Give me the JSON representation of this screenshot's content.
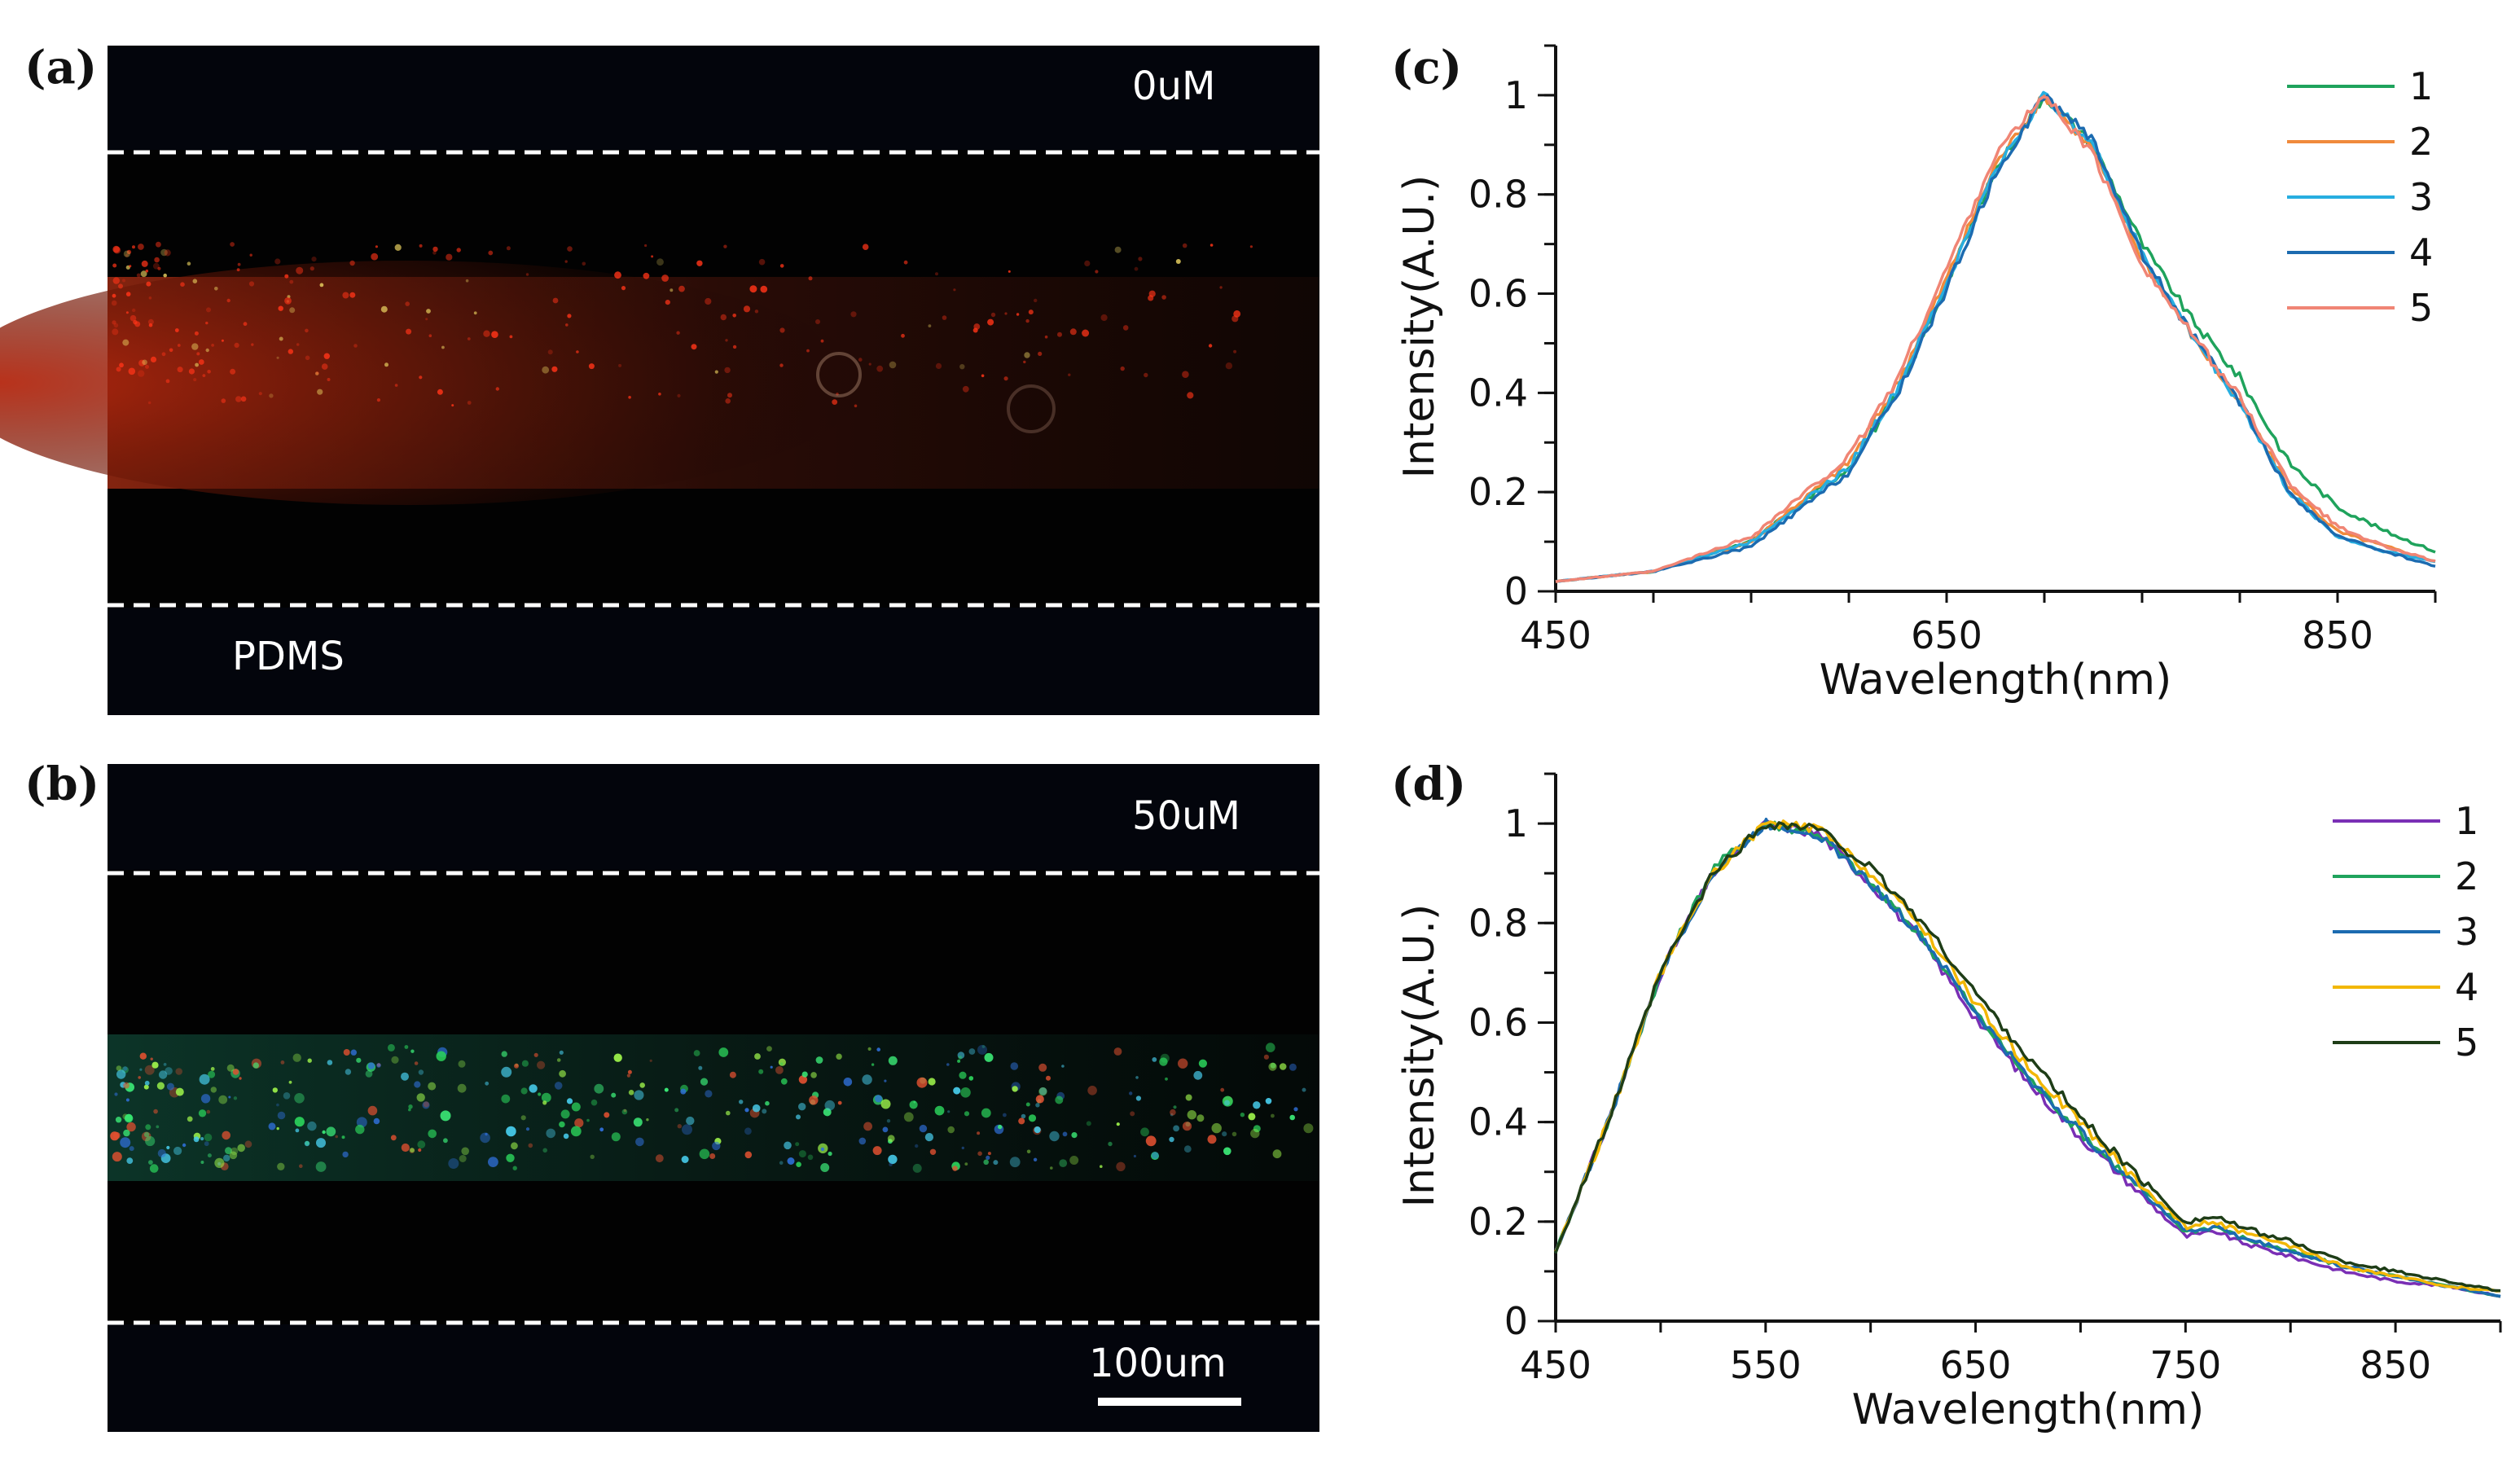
{
  "figure": {
    "panels": {
      "a": {
        "label": "(a)",
        "concentration": "0uM",
        "material": "PDMS"
      },
      "b": {
        "label": "(b)",
        "concentration": "50uM",
        "scale_bar": "100um"
      },
      "c": {
        "label": "(c)"
      },
      "d": {
        "label": "(d)"
      }
    }
  },
  "chart_data": [
    {
      "panel": "c",
      "type": "line",
      "title": "",
      "xlabel": "Wavelength(nm)",
      "ylabel": "Intensity(A.U.)",
      "xlim": [
        450,
        900
      ],
      "ylim": [
        0,
        1.1
      ],
      "xticks": [
        450,
        650,
        850
      ],
      "xtick_labels": [
        "450",
        "650",
        "850"
      ],
      "yticks": [
        0,
        0.2,
        0.4,
        0.6,
        0.8,
        1
      ],
      "ytick_labels": [
        "0",
        "0.2",
        "0.4",
        "0.6",
        "0.8",
        "1"
      ],
      "legend_position": "top-right",
      "x": [
        450,
        500,
        550,
        600,
        625,
        650,
        675,
        700,
        725,
        750,
        775,
        800,
        825,
        850,
        875,
        900
      ],
      "series": [
        {
          "name": "1",
          "color": "#1fa35c",
          "values": [
            0.02,
            0.04,
            0.1,
            0.25,
            0.4,
            0.62,
            0.85,
            1.0,
            0.9,
            0.7,
            0.55,
            0.43,
            0.26,
            0.17,
            0.12,
            0.08
          ]
        },
        {
          "name": "2",
          "color": "#f08a3c",
          "values": [
            0.02,
            0.04,
            0.1,
            0.26,
            0.42,
            0.63,
            0.86,
            1.0,
            0.89,
            0.67,
            0.52,
            0.38,
            0.21,
            0.12,
            0.09,
            0.06
          ]
        },
        {
          "name": "3",
          "color": "#27aee0",
          "values": [
            0.02,
            0.04,
            0.1,
            0.25,
            0.41,
            0.62,
            0.85,
            1.0,
            0.9,
            0.68,
            0.52,
            0.38,
            0.2,
            0.11,
            0.08,
            0.06
          ]
        },
        {
          "name": "4",
          "color": "#1c6bb0",
          "values": [
            0.02,
            0.04,
            0.09,
            0.24,
            0.4,
            0.61,
            0.84,
            1.0,
            0.91,
            0.68,
            0.52,
            0.38,
            0.2,
            0.11,
            0.08,
            0.05
          ]
        },
        {
          "name": "5",
          "color": "#f08575",
          "values": [
            0.02,
            0.04,
            0.11,
            0.27,
            0.43,
            0.65,
            0.88,
            1.0,
            0.88,
            0.66,
            0.52,
            0.39,
            0.22,
            0.13,
            0.09,
            0.06
          ]
        }
      ]
    },
    {
      "panel": "d",
      "type": "line",
      "title": "",
      "xlabel": "Wavelength(nm)",
      "ylabel": "Intensity(A.U.)",
      "xlim": [
        450,
        900
      ],
      "ylim": [
        0,
        1.1
      ],
      "xticks": [
        450,
        550,
        650,
        750,
        850
      ],
      "xtick_labels": [
        "450",
        "550",
        "650",
        "750",
        "850"
      ],
      "yticks": [
        0,
        0.2,
        0.4,
        0.6,
        0.8,
        1
      ],
      "ytick_labels": [
        "0",
        "0.2",
        "0.4",
        "0.6",
        "0.8",
        "1"
      ],
      "legend_position": "top-right",
      "x": [
        450,
        475,
        500,
        525,
        550,
        575,
        600,
        625,
        650,
        675,
        700,
        725,
        750,
        765,
        775,
        800,
        825,
        850,
        875,
        900
      ],
      "series": [
        {
          "name": "1",
          "color": "#7a2fb5",
          "values": [
            0.14,
            0.4,
            0.7,
            0.9,
            1.0,
            0.98,
            0.88,
            0.76,
            0.61,
            0.48,
            0.37,
            0.27,
            0.17,
            0.18,
            0.16,
            0.13,
            0.1,
            0.08,
            0.07,
            0.05
          ]
        },
        {
          "name": "2",
          "color": "#1fa35c",
          "values": [
            0.14,
            0.4,
            0.7,
            0.91,
            1.0,
            0.98,
            0.88,
            0.77,
            0.62,
            0.49,
            0.38,
            0.28,
            0.18,
            0.19,
            0.17,
            0.14,
            0.11,
            0.09,
            0.07,
            0.05
          ]
        },
        {
          "name": "3",
          "color": "#1c6bb0",
          "values": [
            0.14,
            0.4,
            0.7,
            0.9,
            1.0,
            0.98,
            0.88,
            0.77,
            0.62,
            0.49,
            0.38,
            0.28,
            0.18,
            0.19,
            0.17,
            0.14,
            0.11,
            0.09,
            0.07,
            0.05
          ]
        },
        {
          "name": "4",
          "color": "#f2b705",
          "values": [
            0.14,
            0.4,
            0.7,
            0.9,
            1.0,
            0.99,
            0.9,
            0.79,
            0.64,
            0.51,
            0.4,
            0.29,
            0.19,
            0.2,
            0.18,
            0.15,
            0.11,
            0.09,
            0.07,
            0.06
          ]
        },
        {
          "name": "5",
          "color": "#1e3d17",
          "values": [
            0.14,
            0.4,
            0.7,
            0.9,
            1.0,
            0.99,
            0.91,
            0.8,
            0.66,
            0.53,
            0.41,
            0.3,
            0.2,
            0.21,
            0.19,
            0.16,
            0.12,
            0.1,
            0.08,
            0.06
          ]
        }
      ]
    }
  ]
}
